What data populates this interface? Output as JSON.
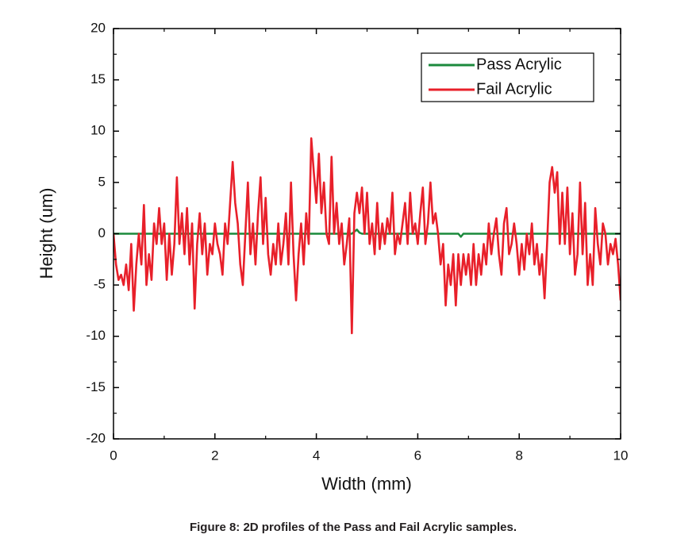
{
  "chart_data": {
    "type": "line",
    "xlabel": "Width (mm)",
    "ylabel": "Height (um)",
    "caption": "Figure 8: 2D profiles of the Pass and Fail Acrylic samples.",
    "xlim": [
      0,
      10
    ],
    "xticks": [
      0,
      2,
      4,
      6,
      8,
      10
    ],
    "ylim": [
      -20,
      20
    ],
    "yticks": [
      -20,
      -15,
      -10,
      -5,
      0,
      5,
      10,
      15,
      20
    ],
    "legend": "upper right",
    "x": [
      0,
      0.05,
      0.1,
      0.15,
      0.2,
      0.25,
      0.3,
      0.35,
      0.4,
      0.45,
      0.5,
      0.55,
      0.6,
      0.65,
      0.7,
      0.75,
      0.8,
      0.85,
      0.9,
      0.95,
      1,
      1.05,
      1.1,
      1.15,
      1.2,
      1.25,
      1.3,
      1.35,
      1.4,
      1.45,
      1.5,
      1.55,
      1.6,
      1.65,
      1.7,
      1.75,
      1.8,
      1.85,
      1.9,
      1.95,
      2,
      2.05,
      2.1,
      2.15,
      2.2,
      2.25,
      2.3,
      2.35,
      2.4,
      2.45,
      2.5,
      2.55,
      2.6,
      2.65,
      2.7,
      2.75,
      2.8,
      2.85,
      2.9,
      2.95,
      3,
      3.05,
      3.1,
      3.15,
      3.2,
      3.25,
      3.3,
      3.35,
      3.4,
      3.45,
      3.5,
      3.55,
      3.6,
      3.65,
      3.7,
      3.75,
      3.8,
      3.85,
      3.9,
      3.95,
      4,
      4.05,
      4.1,
      4.15,
      4.2,
      4.25,
      4.3,
      4.35,
      4.4,
      4.45,
      4.5,
      4.55,
      4.6,
      4.65,
      4.7,
      4.75,
      4.8,
      4.85,
      4.9,
      4.95,
      5,
      5.05,
      5.1,
      5.15,
      5.2,
      5.25,
      5.3,
      5.35,
      5.4,
      5.45,
      5.5,
      5.55,
      5.6,
      5.65,
      5.7,
      5.75,
      5.8,
      5.85,
      5.9,
      5.95,
      6,
      6.05,
      6.1,
      6.15,
      6.2,
      6.25,
      6.3,
      6.35,
      6.4,
      6.45,
      6.5,
      6.55,
      6.6,
      6.65,
      6.7,
      6.75,
      6.8,
      6.85,
      6.9,
      6.95,
      7,
      7.05,
      7.1,
      7.15,
      7.2,
      7.25,
      7.3,
      7.35,
      7.4,
      7.45,
      7.5,
      7.55,
      7.6,
      7.65,
      7.7,
      7.75,
      7.8,
      7.85,
      7.9,
      7.95,
      8,
      8.05,
      8.1,
      8.15,
      8.2,
      8.25,
      8.3,
      8.35,
      8.4,
      8.45,
      8.5,
      8.55,
      8.6,
      8.65,
      8.7,
      8.75,
      8.8,
      8.85,
      8.9,
      8.95,
      9,
      9.05,
      9.1,
      9.15,
      9.2,
      9.25,
      9.3,
      9.35,
      9.4,
      9.45,
      9.5,
      9.55,
      9.6,
      9.65,
      9.7,
      9.75,
      9.8,
      9.85,
      9.9,
      9.95,
      10
    ],
    "series": [
      {
        "name": "Pass Acrylic",
        "color": "#1b8a3c",
        "values": [
          0,
          0,
          0,
          0,
          0,
          0,
          0,
          0,
          0,
          0,
          0,
          0,
          0,
          0,
          0,
          0,
          0,
          0,
          0,
          0,
          0,
          0,
          0,
          0,
          0,
          0,
          0,
          0,
          0,
          0,
          0,
          0,
          0,
          0,
          0,
          0,
          0,
          0,
          0,
          0,
          0,
          0,
          0,
          0,
          0,
          0,
          0,
          0,
          0,
          0,
          0,
          0,
          0,
          0,
          0,
          0,
          0,
          0,
          0,
          0,
          0,
          0,
          0,
          0,
          0,
          0,
          0,
          0,
          0,
          0,
          0,
          0,
          0,
          0,
          0,
          0,
          0,
          0,
          0,
          0,
          0,
          0,
          0,
          0,
          0,
          0,
          0,
          0,
          0,
          0,
          0,
          0,
          0,
          0,
          0,
          0.2,
          0.4,
          0.1,
          0,
          0,
          0,
          0,
          0,
          0,
          0,
          0,
          0,
          0,
          0,
          0,
          0,
          0,
          0,
          0,
          0,
          0,
          0,
          0,
          0,
          0,
          0,
          0,
          0,
          0,
          0,
          0,
          0,
          0,
          0,
          0,
          0,
          0,
          0,
          0,
          0,
          0,
          0,
          -0.3,
          0,
          0,
          0,
          0,
          0,
          0,
          0,
          0,
          0,
          0,
          0,
          0,
          0,
          0,
          0,
          0,
          0,
          0,
          0,
          0,
          0,
          0,
          0,
          0,
          0,
          0,
          0,
          0,
          0,
          0,
          0,
          0,
          0,
          0,
          0,
          0,
          0,
          0,
          0,
          0,
          0,
          0,
          0,
          0,
          0,
          0,
          0,
          0,
          0,
          0,
          0,
          0,
          0,
          0,
          0,
          0,
          0,
          0,
          0,
          0,
          0,
          0,
          0
        ]
      },
      {
        "name": "Fail Acrylic",
        "color": "#e8202a",
        "values": [
          0,
          -3,
          -4.5,
          -4,
          -5,
          -3,
          -5.5,
          -1,
          -7.5,
          -3,
          0,
          -3,
          2.8,
          -5,
          -2,
          -4.5,
          1,
          -1,
          2.5,
          -1,
          1,
          -4.5,
          0,
          -4,
          -1,
          5.5,
          -1,
          2,
          -2,
          2.5,
          -3,
          1,
          -7.3,
          -1,
          2,
          -2,
          1,
          -4,
          -1,
          -2,
          1,
          -1,
          -2,
          -4,
          1,
          -1,
          3,
          7,
          3,
          1,
          -3,
          -5,
          0,
          5,
          -2,
          1,
          -3,
          2,
          5.5,
          -1,
          3.5,
          -2,
          -4,
          -1,
          -3,
          1,
          -3,
          -1,
          2,
          -3,
          5,
          -2,
          -6.5,
          -2,
          1,
          -3,
          2,
          -1,
          9.3,
          6,
          3,
          7.8,
          2,
          5,
          0,
          -1,
          7.5,
          0,
          3,
          -1,
          1,
          -3,
          -1,
          1.5,
          -9.7,
          2,
          4,
          2,
          4.5,
          0,
          4,
          -1,
          1,
          -2,
          3,
          -1.5,
          1,
          -1,
          1.5,
          0,
          4,
          -2,
          0,
          -1,
          1,
          3,
          -1,
          4,
          0,
          1,
          -1,
          2,
          4.5,
          -1,
          1,
          5,
          1,
          2,
          0,
          -3,
          -1,
          -7,
          -3,
          -5,
          -2,
          -7,
          -2,
          -5,
          -2,
          -4,
          -2,
          -5,
          -1,
          -5,
          -2,
          -4,
          -1,
          -3,
          1,
          -2,
          0,
          1.5,
          -2,
          -4,
          1,
          2.5,
          -2,
          -1,
          1,
          -1,
          -4,
          -1,
          -3.5,
          0,
          -2,
          1,
          -3,
          -1,
          -4,
          -2,
          -6.3,
          -1,
          5,
          6.5,
          4,
          6,
          -1,
          4,
          -1,
          4.5,
          -2,
          2,
          -4,
          -2,
          5,
          -2,
          3,
          -5,
          -2,
          -5,
          2.5,
          -1,
          -3,
          1,
          0,
          -3,
          -1,
          -2,
          -0.5,
          -3,
          -6.5
        ]
      }
    ]
  }
}
